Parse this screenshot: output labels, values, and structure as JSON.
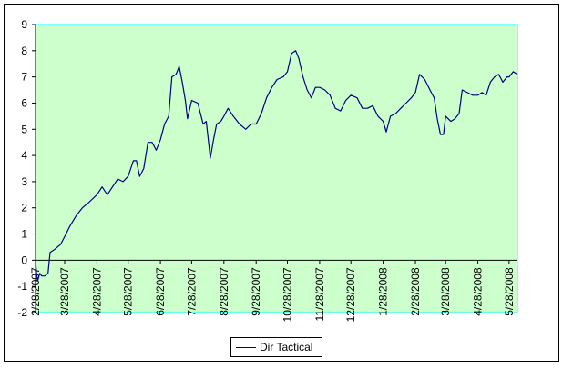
{
  "chart_data": {
    "type": "line",
    "title": "",
    "xlabel": "",
    "ylabel": "",
    "ylim": [
      -2,
      9
    ],
    "y_ticks": [
      "-2",
      "-1",
      "0",
      "1",
      "2",
      "3",
      "4",
      "5",
      "6",
      "7",
      "8",
      "9"
    ],
    "x_tick_labels": [
      "2/28/2007",
      "3/28/2007",
      "4/28/2007",
      "5/28/2007",
      "6/28/2007",
      "7/28/2007",
      "8/28/2007",
      "9/28/2007",
      "10/28/2007",
      "11/28/2007",
      "12/28/2007",
      "1/28/2008",
      "2/28/2008",
      "3/28/2008",
      "4/28/2008",
      "5/28/2008"
    ],
    "xlim": [
      "2007-02-28",
      "2008-06-05"
    ],
    "grid": false,
    "plot_background": "#ccffcc",
    "plot_border_color": "#00ffff",
    "legend_position": "bottom-center",
    "series": [
      {
        "name": "Dir Tactical",
        "color": "#000080",
        "points": [
          [
            "2007-02-28",
            0
          ],
          [
            "2007-03-01",
            -0.5
          ],
          [
            "2007-03-02",
            -0.8
          ],
          [
            "2007-03-04",
            -0.5
          ],
          [
            "2007-03-06",
            -0.6
          ],
          [
            "2007-03-09",
            -0.6
          ],
          [
            "2007-03-12",
            -0.5
          ],
          [
            "2007-03-14",
            0.3
          ],
          [
            "2007-03-18",
            0.4
          ],
          [
            "2007-03-24",
            0.6
          ],
          [
            "2007-03-28",
            0.9
          ],
          [
            "2007-04-02",
            1.3
          ],
          [
            "2007-04-08",
            1.7
          ],
          [
            "2007-04-14",
            2.0
          ],
          [
            "2007-04-20",
            2.2
          ],
          [
            "2007-04-28",
            2.5
          ],
          [
            "2007-05-03",
            2.8
          ],
          [
            "2007-05-08",
            2.5
          ],
          [
            "2007-05-13",
            2.8
          ],
          [
            "2007-05-18",
            3.1
          ],
          [
            "2007-05-23",
            3.0
          ],
          [
            "2007-05-28",
            3.2
          ],
          [
            "2007-06-02",
            3.8
          ],
          [
            "2007-06-05",
            3.8
          ],
          [
            "2007-06-08",
            3.2
          ],
          [
            "2007-06-12",
            3.5
          ],
          [
            "2007-06-16",
            4.5
          ],
          [
            "2007-06-20",
            4.5
          ],
          [
            "2007-06-24",
            4.2
          ],
          [
            "2007-06-28",
            4.6
          ],
          [
            "2007-07-02",
            5.2
          ],
          [
            "2007-07-06",
            5.5
          ],
          [
            "2007-07-09",
            7.0
          ],
          [
            "2007-07-13",
            7.1
          ],
          [
            "2007-07-16",
            7.4
          ],
          [
            "2007-07-19",
            6.8
          ],
          [
            "2007-07-22",
            6.1
          ],
          [
            "2007-07-24",
            5.4
          ],
          [
            "2007-07-28",
            6.1
          ],
          [
            "2007-08-03",
            6.0
          ],
          [
            "2007-08-08",
            5.2
          ],
          [
            "2007-08-11",
            5.3
          ],
          [
            "2007-08-15",
            3.9
          ],
          [
            "2007-08-18",
            4.6
          ],
          [
            "2007-08-21",
            5.2
          ],
          [
            "2007-08-25",
            5.3
          ],
          [
            "2007-08-28",
            5.5
          ],
          [
            "2007-09-01",
            5.8
          ],
          [
            "2007-09-06",
            5.5
          ],
          [
            "2007-09-12",
            5.2
          ],
          [
            "2007-09-18",
            5.0
          ],
          [
            "2007-09-23",
            5.2
          ],
          [
            "2007-09-28",
            5.2
          ],
          [
            "2007-10-03",
            5.6
          ],
          [
            "2007-10-08",
            6.2
          ],
          [
            "2007-10-13",
            6.6
          ],
          [
            "2007-10-18",
            6.9
          ],
          [
            "2007-10-24",
            7.0
          ],
          [
            "2007-10-28",
            7.2
          ],
          [
            "2007-11-01",
            7.9
          ],
          [
            "2007-11-05",
            8.0
          ],
          [
            "2007-11-08",
            7.7
          ],
          [
            "2007-11-12",
            7.0
          ],
          [
            "2007-11-16",
            6.5
          ],
          [
            "2007-11-20",
            6.2
          ],
          [
            "2007-11-24",
            6.6
          ],
          [
            "2007-11-28",
            6.6
          ],
          [
            "2007-12-03",
            6.5
          ],
          [
            "2007-12-08",
            6.3
          ],
          [
            "2007-12-13",
            5.8
          ],
          [
            "2007-12-18",
            5.7
          ],
          [
            "2007-12-23",
            6.1
          ],
          [
            "2007-12-28",
            6.3
          ],
          [
            "2008-01-03",
            6.2
          ],
          [
            "2008-01-08",
            5.8
          ],
          [
            "2008-01-13",
            5.8
          ],
          [
            "2008-01-18",
            5.9
          ],
          [
            "2008-01-23",
            5.5
          ],
          [
            "2008-01-28",
            5.3
          ],
          [
            "2008-01-31",
            4.9
          ],
          [
            "2008-02-04",
            5.5
          ],
          [
            "2008-02-09",
            5.6
          ],
          [
            "2008-02-14",
            5.8
          ],
          [
            "2008-02-19",
            6.0
          ],
          [
            "2008-02-24",
            6.2
          ],
          [
            "2008-02-28",
            6.4
          ],
          [
            "2008-03-03",
            7.1
          ],
          [
            "2008-03-08",
            6.9
          ],
          [
            "2008-03-13",
            6.5
          ],
          [
            "2008-03-17",
            6.2
          ],
          [
            "2008-03-20",
            5.4
          ],
          [
            "2008-03-23",
            4.8
          ],
          [
            "2008-03-26",
            4.8
          ],
          [
            "2008-03-28",
            5.5
          ],
          [
            "2008-04-02",
            5.3
          ],
          [
            "2008-04-06",
            5.4
          ],
          [
            "2008-04-10",
            5.6
          ],
          [
            "2008-04-13",
            6.5
          ],
          [
            "2008-04-18",
            6.4
          ],
          [
            "2008-04-23",
            6.3
          ],
          [
            "2008-04-28",
            6.3
          ],
          [
            "2008-05-02",
            6.4
          ],
          [
            "2008-05-06",
            6.3
          ],
          [
            "2008-05-10",
            6.8
          ],
          [
            "2008-05-14",
            7.0
          ],
          [
            "2008-05-18",
            7.1
          ],
          [
            "2008-05-22",
            6.8
          ],
          [
            "2008-05-26",
            7.0
          ],
          [
            "2008-05-28",
            7.0
          ],
          [
            "2008-06-01",
            7.2
          ],
          [
            "2008-06-05",
            7.1
          ]
        ]
      }
    ]
  }
}
